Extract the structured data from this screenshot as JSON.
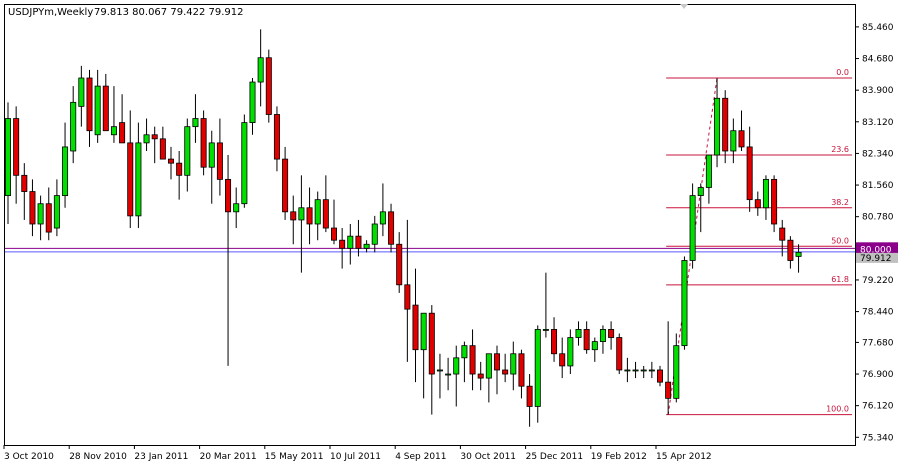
{
  "header": {
    "symbol": "USDJPYm,Weekly",
    "ohlc": "79.813 80.067 79.422 79.912"
  },
  "colors": {
    "bull": "#00e000",
    "bear": "#e00000",
    "outline": "#000000",
    "fibo": "#c8143c",
    "hline": "#8a008a",
    "price_label_bg": "#8a008a",
    "current_label_bg": "#c0c0c0"
  },
  "chart_data": {
    "type": "candlestick",
    "title": "",
    "ylim": [
      75.15,
      86.0
    ],
    "y_ticks": [
      "85.460",
      "84.680",
      "83.900",
      "83.120",
      "82.340",
      "81.560",
      "80.780",
      "80.000",
      "79.220",
      "78.440",
      "77.680",
      "76.900",
      "76.120",
      "75.340"
    ],
    "x_ticks": [
      "3 Oct 2010",
      "28 Nov 2010",
      "23 Jan 2011",
      "20 Mar 2011",
      "15 May 2011",
      "10 Jul 2011",
      "4 Sep 2011",
      "30 Oct 2011",
      "25 Dec 2011",
      "19 Feb 2012",
      "15 Apr 2012"
    ],
    "x_tick_index": [
      0,
      8,
      16,
      24,
      32,
      40,
      48,
      56,
      64,
      72,
      80
    ],
    "candles": [
      {
        "o": 81.3,
        "h": 83.6,
        "l": 80.6,
        "c": 83.2
      },
      {
        "o": 83.2,
        "h": 83.5,
        "l": 81.1,
        "c": 81.8
      },
      {
        "o": 81.8,
        "h": 82.1,
        "l": 80.7,
        "c": 81.4
      },
      {
        "o": 81.4,
        "h": 81.7,
        "l": 80.3,
        "c": 80.6
      },
      {
        "o": 80.6,
        "h": 81.3,
        "l": 80.2,
        "c": 81.1
      },
      {
        "o": 81.1,
        "h": 81.5,
        "l": 80.2,
        "c": 80.4
      },
      {
        "o": 80.5,
        "h": 81.7,
        "l": 80.3,
        "c": 81.3
      },
      {
        "o": 81.3,
        "h": 83.1,
        "l": 81.0,
        "c": 82.5
      },
      {
        "o": 82.4,
        "h": 84.0,
        "l": 82.1,
        "c": 83.6
      },
      {
        "o": 83.5,
        "h": 84.5,
        "l": 83.0,
        "c": 84.2
      },
      {
        "o": 84.2,
        "h": 84.4,
        "l": 82.5,
        "c": 82.9
      },
      {
        "o": 82.8,
        "h": 84.4,
        "l": 82.6,
        "c": 84.0
      },
      {
        "o": 84.0,
        "h": 84.3,
        "l": 82.9,
        "c": 82.9
      },
      {
        "o": 82.8,
        "h": 84.0,
        "l": 82.6,
        "c": 83.0
      },
      {
        "o": 83.1,
        "h": 83.8,
        "l": 82.6,
        "c": 82.6
      },
      {
        "o": 82.6,
        "h": 83.4,
        "l": 80.5,
        "c": 80.8
      },
      {
        "o": 80.8,
        "h": 83.1,
        "l": 80.5,
        "c": 82.6
      },
      {
        "o": 82.6,
        "h": 83.2,
        "l": 82.4,
        "c": 82.8
      },
      {
        "o": 82.8,
        "h": 83.0,
        "l": 82.1,
        "c": 82.7
      },
      {
        "o": 82.7,
        "h": 83.0,
        "l": 82.2,
        "c": 82.2
      },
      {
        "o": 82.2,
        "h": 82.5,
        "l": 81.7,
        "c": 82.1
      },
      {
        "o": 82.1,
        "h": 82.4,
        "l": 81.2,
        "c": 81.8
      },
      {
        "o": 81.8,
        "h": 83.2,
        "l": 81.4,
        "c": 83.0
      },
      {
        "o": 83.0,
        "h": 83.8,
        "l": 82.6,
        "c": 83.2
      },
      {
        "o": 83.2,
        "h": 83.4,
        "l": 81.8,
        "c": 82.0
      },
      {
        "o": 82.0,
        "h": 82.9,
        "l": 81.1,
        "c": 82.6
      },
      {
        "o": 82.6,
        "h": 83.2,
        "l": 81.3,
        "c": 81.7
      },
      {
        "o": 81.7,
        "h": 82.3,
        "l": 77.1,
        "c": 80.9
      },
      {
        "o": 80.9,
        "h": 81.5,
        "l": 80.5,
        "c": 81.1
      },
      {
        "o": 81.1,
        "h": 83.3,
        "l": 81.0,
        "c": 83.1
      },
      {
        "o": 83.1,
        "h": 84.2,
        "l": 82.8,
        "c": 84.1
      },
      {
        "o": 84.1,
        "h": 85.4,
        "l": 83.5,
        "c": 84.7
      },
      {
        "o": 84.7,
        "h": 84.9,
        "l": 83.1,
        "c": 83.3
      },
      {
        "o": 83.3,
        "h": 83.5,
        "l": 81.9,
        "c": 82.2
      },
      {
        "o": 82.2,
        "h": 82.5,
        "l": 80.7,
        "c": 80.9
      },
      {
        "o": 80.9,
        "h": 81.3,
        "l": 80.1,
        "c": 80.7
      },
      {
        "o": 80.7,
        "h": 81.8,
        "l": 79.4,
        "c": 81.0
      },
      {
        "o": 81.0,
        "h": 81.5,
        "l": 80.1,
        "c": 80.6
      },
      {
        "o": 80.6,
        "h": 81.4,
        "l": 80.2,
        "c": 81.2
      },
      {
        "o": 81.2,
        "h": 81.8,
        "l": 80.4,
        "c": 80.5
      },
      {
        "o": 80.5,
        "h": 81.2,
        "l": 80.1,
        "c": 80.2
      },
      {
        "o": 80.2,
        "h": 80.5,
        "l": 79.5,
        "c": 80.0
      },
      {
        "o": 80.0,
        "h": 80.6,
        "l": 79.6,
        "c": 80.3
      },
      {
        "o": 80.3,
        "h": 80.7,
        "l": 79.8,
        "c": 80.0
      },
      {
        "o": 80.0,
        "h": 80.2,
        "l": 79.9,
        "c": 80.1
      },
      {
        "o": 80.1,
        "h": 80.8,
        "l": 79.9,
        "c": 80.6
      },
      {
        "o": 80.6,
        "h": 81.6,
        "l": 80.3,
        "c": 80.9
      },
      {
        "o": 80.9,
        "h": 81.1,
        "l": 79.9,
        "c": 80.1
      },
      {
        "o": 80.1,
        "h": 80.4,
        "l": 78.9,
        "c": 79.1
      },
      {
        "o": 79.1,
        "h": 80.7,
        "l": 77.2,
        "c": 78.5
      },
      {
        "o": 78.6,
        "h": 79.5,
        "l": 76.7,
        "c": 77.5
      },
      {
        "o": 77.5,
        "h": 78.3,
        "l": 76.3,
        "c": 78.4
      },
      {
        "o": 78.4,
        "h": 78.6,
        "l": 75.9,
        "c": 76.9
      },
      {
        "o": 77.0,
        "h": 77.4,
        "l": 76.3,
        "c": 77.0
      },
      {
        "o": 76.9,
        "h": 77.3,
        "l": 76.5,
        "c": 76.9
      },
      {
        "o": 76.9,
        "h": 77.6,
        "l": 76.1,
        "c": 77.3
      },
      {
        "o": 77.3,
        "h": 77.7,
        "l": 76.7,
        "c": 77.6
      },
      {
        "o": 77.6,
        "h": 78.0,
        "l": 76.5,
        "c": 76.9
      },
      {
        "o": 76.9,
        "h": 77.2,
        "l": 76.5,
        "c": 76.8
      },
      {
        "o": 76.8,
        "h": 77.4,
        "l": 76.2,
        "c": 77.4
      },
      {
        "o": 77.4,
        "h": 77.6,
        "l": 76.4,
        "c": 77.0
      },
      {
        "o": 77.0,
        "h": 77.4,
        "l": 76.7,
        "c": 76.9
      },
      {
        "o": 76.9,
        "h": 77.7,
        "l": 76.5,
        "c": 77.4
      },
      {
        "o": 77.4,
        "h": 77.5,
        "l": 76.3,
        "c": 76.6
      },
      {
        "o": 76.6,
        "h": 76.9,
        "l": 75.6,
        "c": 76.1
      },
      {
        "o": 76.1,
        "h": 78.1,
        "l": 75.7,
        "c": 78.0
      },
      {
        "o": 78.0,
        "h": 79.4,
        "l": 77.8,
        "c": 78.0
      },
      {
        "o": 78.0,
        "h": 78.3,
        "l": 77.2,
        "c": 77.4
      },
      {
        "o": 77.4,
        "h": 77.8,
        "l": 76.8,
        "c": 77.1
      },
      {
        "o": 77.1,
        "h": 78.0,
        "l": 76.9,
        "c": 77.8
      },
      {
        "o": 77.8,
        "h": 78.2,
        "l": 77.6,
        "c": 78.0
      },
      {
        "o": 78.0,
        "h": 78.2,
        "l": 77.4,
        "c": 77.5
      },
      {
        "o": 77.5,
        "h": 77.8,
        "l": 77.2,
        "c": 77.7
      },
      {
        "o": 77.7,
        "h": 78.1,
        "l": 77.4,
        "c": 78.0
      },
      {
        "o": 78.0,
        "h": 78.2,
        "l": 77.5,
        "c": 77.8
      },
      {
        "o": 77.8,
        "h": 77.9,
        "l": 76.9,
        "c": 77.0
      },
      {
        "o": 77.0,
        "h": 77.3,
        "l": 76.7,
        "c": 77.0
      },
      {
        "o": 77.0,
        "h": 77.2,
        "l": 76.8,
        "c": 77.0
      },
      {
        "o": 77.0,
        "h": 77.1,
        "l": 76.8,
        "c": 77.0
      },
      {
        "o": 77.0,
        "h": 77.2,
        "l": 76.8,
        "c": 77.0
      },
      {
        "o": 77.0,
        "h": 77.1,
        "l": 76.6,
        "c": 76.7
      },
      {
        "o": 76.7,
        "h": 78.2,
        "l": 75.9,
        "c": 76.3
      },
      {
        "o": 76.3,
        "h": 77.9,
        "l": 76.2,
        "c": 77.6
      },
      {
        "o": 77.6,
        "h": 79.8,
        "l": 77.5,
        "c": 79.7
      },
      {
        "o": 79.7,
        "h": 81.6,
        "l": 79.5,
        "c": 81.3
      },
      {
        "o": 81.3,
        "h": 81.6,
        "l": 80.4,
        "c": 81.5
      },
      {
        "o": 81.5,
        "h": 82.3,
        "l": 81.1,
        "c": 82.3
      },
      {
        "o": 82.3,
        "h": 84.2,
        "l": 82.0,
        "c": 83.7
      },
      {
        "o": 83.7,
        "h": 83.9,
        "l": 82.1,
        "c": 82.4
      },
      {
        "o": 82.4,
        "h": 83.2,
        "l": 82.1,
        "c": 82.9
      },
      {
        "o": 82.9,
        "h": 83.4,
        "l": 82.4,
        "c": 82.5
      },
      {
        "o": 82.5,
        "h": 83.0,
        "l": 80.9,
        "c": 81.2
      },
      {
        "o": 81.2,
        "h": 81.4,
        "l": 80.8,
        "c": 81.0
      },
      {
        "o": 81.0,
        "h": 81.8,
        "l": 80.7,
        "c": 81.7
      },
      {
        "o": 81.7,
        "h": 81.8,
        "l": 80.4,
        "c": 80.6
      },
      {
        "o": 80.5,
        "h": 80.7,
        "l": 79.8,
        "c": 80.2
      },
      {
        "o": 80.2,
        "h": 80.3,
        "l": 79.5,
        "c": 79.7
      },
      {
        "o": 79.8,
        "h": 80.1,
        "l": 79.4,
        "c": 79.9
      }
    ],
    "fibonacci": {
      "from_index": 81,
      "from_price": 75.9,
      "to_index": 87,
      "to_price": 84.2,
      "levels": [
        {
          "label": "0.0",
          "price": 84.2
        },
        {
          "label": "23.6",
          "price": 82.3
        },
        {
          "label": "38.2",
          "price": 81.0
        },
        {
          "label": "50.0",
          "price": 80.05
        },
        {
          "label": "61.8",
          "price": 79.1
        },
        {
          "label": "100.0",
          "price": 75.9
        }
      ]
    },
    "horizontal_line": {
      "price": 80.0,
      "label": "80.000"
    },
    "current_price": {
      "price": 79.912,
      "label": "79.912"
    }
  }
}
